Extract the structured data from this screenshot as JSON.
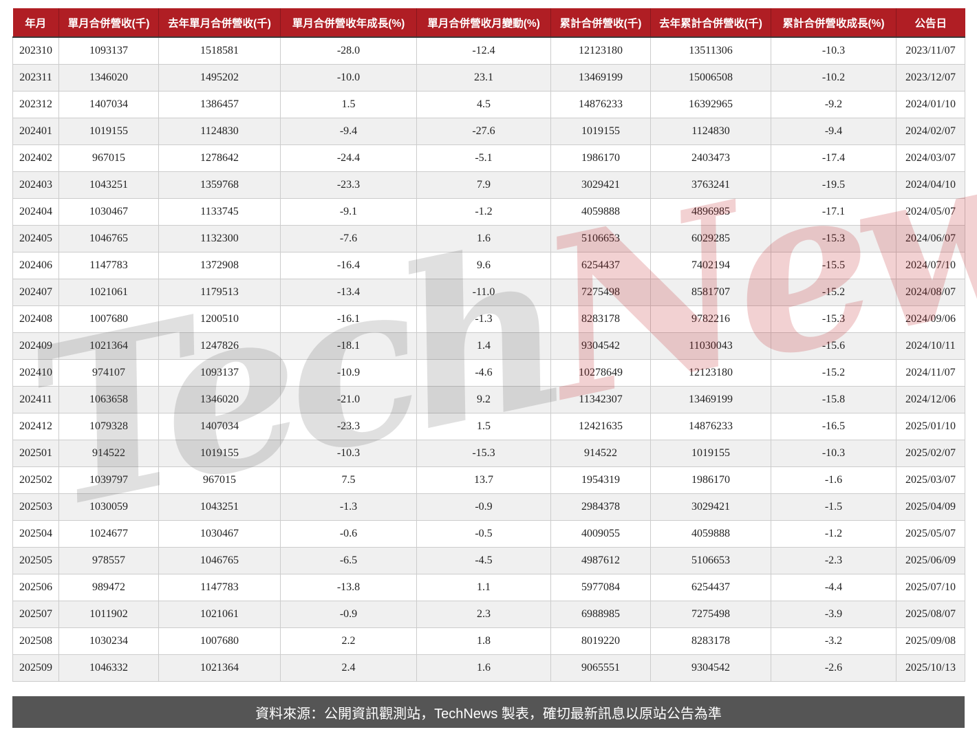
{
  "colors": {
    "header_bg": "#B01E24",
    "header_text": "#FFFFFF",
    "row_alt": "#F0F0F0",
    "border": "#CCCCCC",
    "footer_bg": "#555555",
    "footer_text": "#FFFFFF"
  },
  "watermark": {
    "part1": "Tech",
    "part2": "News"
  },
  "footer": {
    "note": "資料來源：公開資訊觀測站，TechNews 製表，確切最新訊息以原站公告為準"
  },
  "chart_data": {
    "type": "table",
    "columns": [
      "年月",
      "單月合併營收(千)",
      "去年單月合併營收(千)",
      "單月合併營收年成長(%)",
      "單月合併營收月變動(%)",
      "累計合併營收(千)",
      "去年累計合併營收(千)",
      "累計合併營收成長(%)",
      "公告日"
    ],
    "rows": [
      [
        "202310",
        "1093137",
        "1518581",
        "-28.0",
        "-12.4",
        "12123180",
        "13511306",
        "-10.3",
        "2023/11/07"
      ],
      [
        "202311",
        "1346020",
        "1495202",
        "-10.0",
        "23.1",
        "13469199",
        "15006508",
        "-10.2",
        "2023/12/07"
      ],
      [
        "202312",
        "1407034",
        "1386457",
        "1.5",
        "4.5",
        "14876233",
        "16392965",
        "-9.2",
        "2024/01/10"
      ],
      [
        "202401",
        "1019155",
        "1124830",
        "-9.4",
        "-27.6",
        "1019155",
        "1124830",
        "-9.4",
        "2024/02/07"
      ],
      [
        "202402",
        "967015",
        "1278642",
        "-24.4",
        "-5.1",
        "1986170",
        "2403473",
        "-17.4",
        "2024/03/07"
      ],
      [
        "202403",
        "1043251",
        "1359768",
        "-23.3",
        "7.9",
        "3029421",
        "3763241",
        "-19.5",
        "2024/04/10"
      ],
      [
        "202404",
        "1030467",
        "1133745",
        "-9.1",
        "-1.2",
        "4059888",
        "4896985",
        "-17.1",
        "2024/05/07"
      ],
      [
        "202405",
        "1046765",
        "1132300",
        "-7.6",
        "1.6",
        "5106653",
        "6029285",
        "-15.3",
        "2024/06/07"
      ],
      [
        "202406",
        "1147783",
        "1372908",
        "-16.4",
        "9.6",
        "6254437",
        "7402194",
        "-15.5",
        "2024/07/10"
      ],
      [
        "202407",
        "1021061",
        "1179513",
        "-13.4",
        "-11.0",
        "7275498",
        "8581707",
        "-15.2",
        "2024/08/07"
      ],
      [
        "202408",
        "1007680",
        "1200510",
        "-16.1",
        "-1.3",
        "8283178",
        "9782216",
        "-15.3",
        "2024/09/06"
      ],
      [
        "202409",
        "1021364",
        "1247826",
        "-18.1",
        "1.4",
        "9304542",
        "11030043",
        "-15.6",
        "2024/10/11"
      ],
      [
        "202410",
        "974107",
        "1093137",
        "-10.9",
        "-4.6",
        "10278649",
        "12123180",
        "-15.2",
        "2024/11/07"
      ],
      [
        "202411",
        "1063658",
        "1346020",
        "-21.0",
        "9.2",
        "11342307",
        "13469199",
        "-15.8",
        "2024/12/06"
      ],
      [
        "202412",
        "1079328",
        "1407034",
        "-23.3",
        "1.5",
        "12421635",
        "14876233",
        "-16.5",
        "2025/01/10"
      ],
      [
        "202501",
        "914522",
        "1019155",
        "-10.3",
        "-15.3",
        "914522",
        "1019155",
        "-10.3",
        "2025/02/07"
      ],
      [
        "202502",
        "1039797",
        "967015",
        "7.5",
        "13.7",
        "1954319",
        "1986170",
        "-1.6",
        "2025/03/07"
      ],
      [
        "202503",
        "1030059",
        "1043251",
        "-1.3",
        "-0.9",
        "2984378",
        "3029421",
        "-1.5",
        "2025/04/09"
      ],
      [
        "202504",
        "1024677",
        "1030467",
        "-0.6",
        "-0.5",
        "4009055",
        "4059888",
        "-1.2",
        "2025/05/07"
      ],
      [
        "202505",
        "978557",
        "1046765",
        "-6.5",
        "-4.5",
        "4987612",
        "5106653",
        "-2.3",
        "2025/06/09"
      ],
      [
        "202506",
        "989472",
        "1147783",
        "-13.8",
        "1.1",
        "5977084",
        "6254437",
        "-4.4",
        "2025/07/10"
      ],
      [
        "202507",
        "1011902",
        "1021061",
        "-0.9",
        "2.3",
        "6988985",
        "7275498",
        "-3.9",
        "2025/08/07"
      ],
      [
        "202508",
        "1030234",
        "1007680",
        "2.2",
        "1.8",
        "8019220",
        "8283178",
        "-3.2",
        "2025/09/08"
      ],
      [
        "202509",
        "1046332",
        "1021364",
        "2.4",
        "1.6",
        "9065551",
        "9304542",
        "-2.6",
        "2025/10/13"
      ]
    ]
  }
}
